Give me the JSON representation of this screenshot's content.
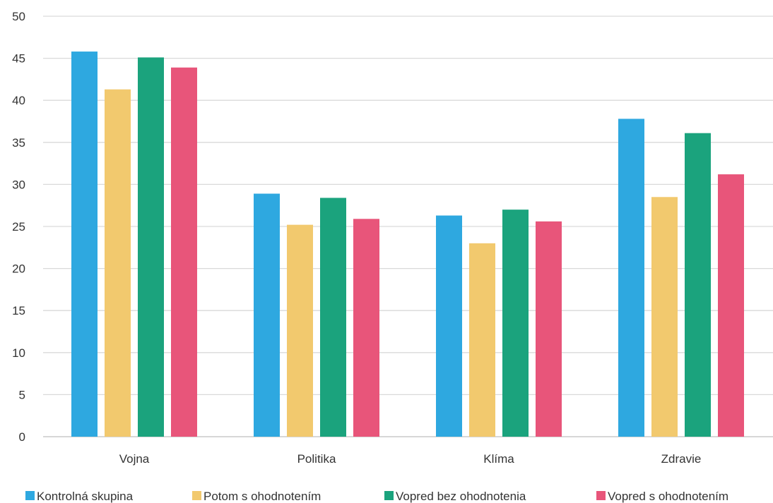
{
  "chart_data": {
    "type": "bar",
    "categories": [
      "Vojna",
      "Politika",
      "Klíma",
      "Zdravie"
    ],
    "series": [
      {
        "name": "Kontrolná skupina",
        "values": [
          45.8,
          28.9,
          26.3,
          37.8
        ]
      },
      {
        "name": "Potom s ohodnotením",
        "values": [
          41.3,
          25.2,
          23.0,
          28.5
        ]
      },
      {
        "name": "Vopred bez ohodnotenia",
        "values": [
          45.1,
          28.4,
          27.0,
          36.1
        ]
      },
      {
        "name": "Vopred s ohodnotením",
        "values": [
          43.9,
          25.9,
          25.6,
          31.2
        ]
      }
    ],
    "ylim": [
      0,
      50
    ],
    "yticks": [
      0,
      5,
      10,
      15,
      20,
      25,
      30,
      35,
      40,
      45,
      50
    ],
    "grid": true,
    "legend": "bottom",
    "colors": [
      "#2EA8E0",
      "#F2C96E",
      "#1BA37D",
      "#E8557A"
    ]
  }
}
